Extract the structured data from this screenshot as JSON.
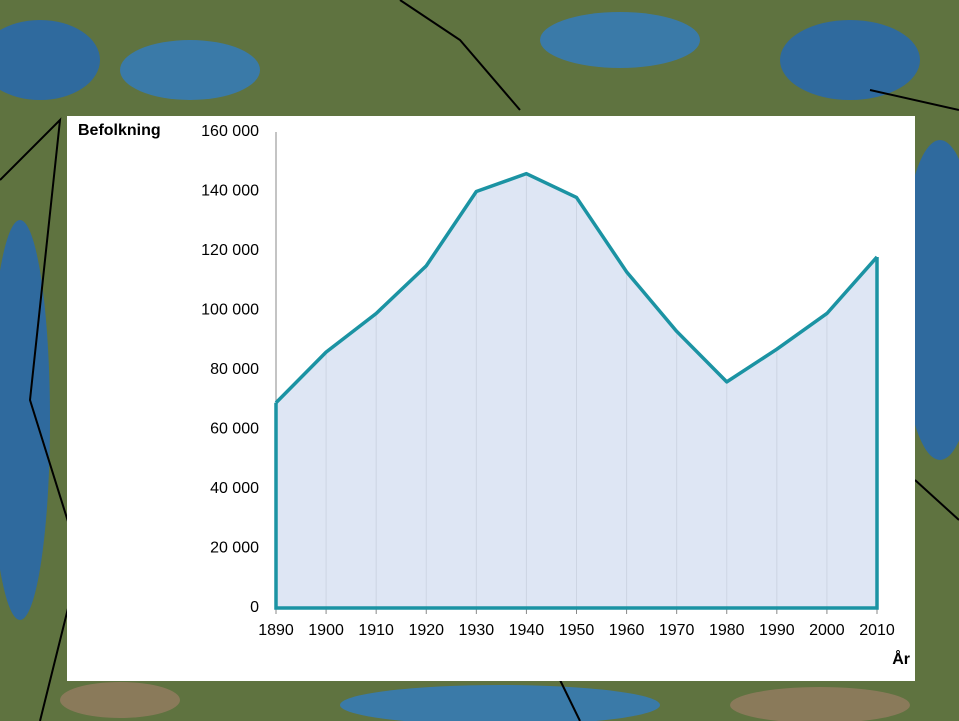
{
  "chart_data": {
    "type": "area",
    "y_label": "Befolkning",
    "x_label": "År",
    "categories": [
      "1890",
      "1900",
      "1910",
      "1920",
      "1930",
      "1940",
      "1950",
      "1960",
      "1970",
      "1980",
      "1990",
      "2000",
      "2010"
    ],
    "values": [
      69000,
      86000,
      99000,
      115000,
      140000,
      146000,
      138000,
      113000,
      93000,
      76000,
      87000,
      99000,
      118000
    ],
    "color": "#1b93a3",
    "fill_color": "#d3def0",
    "ylim": [
      0,
      160000
    ],
    "yticks": [
      0,
      {
        "value": 20000,
        "label": "20 000"
      },
      {
        "value": 40000,
        "label": "40 000"
      },
      {
        "value": 60000,
        "label": "60 000"
      },
      {
        "value": 80000,
        "label": "80 000"
      },
      {
        "value": 100000,
        "label": "100 000"
      },
      {
        "value": 120000,
        "label": "120 000"
      },
      {
        "value": 140000,
        "label": "140 000"
      },
      {
        "value": 160000,
        "label": "160 000"
      }
    ],
    "grid": true
  }
}
